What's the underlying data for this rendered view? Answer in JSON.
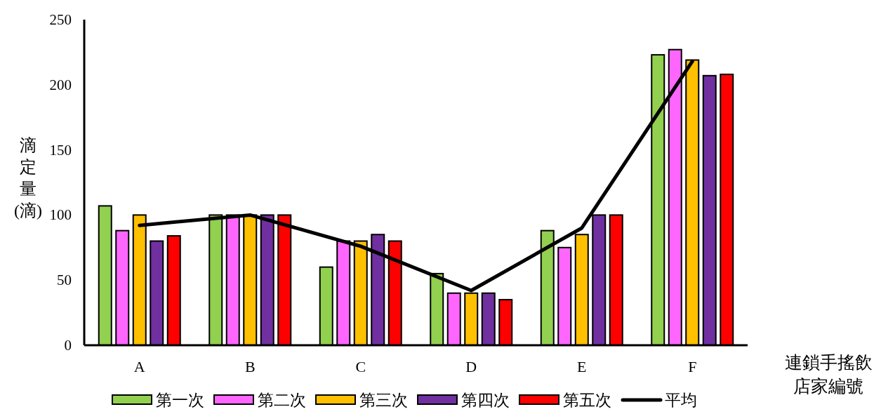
{
  "chart_data": {
    "type": "bar",
    "xlabel": "連鎖手搖飲店家編號",
    "ylabel": "滴定量(滴)",
    "categories": [
      "A",
      "B",
      "C",
      "D",
      "E",
      "F"
    ],
    "ylim": [
      0,
      250
    ],
    "yticks": [
      0,
      50,
      100,
      150,
      200,
      250
    ],
    "legend": "bottom",
    "series": [
      {
        "name": "第一次",
        "color": "#92d050",
        "values": [
          107,
          100,
          60,
          55,
          88,
          223
        ]
      },
      {
        "name": "第二次",
        "color": "#ff66ff",
        "values": [
          88,
          100,
          80,
          40,
          75,
          227
        ]
      },
      {
        "name": "第三次",
        "color": "#ffc000",
        "values": [
          100,
          100,
          80,
          40,
          85,
          219
        ]
      },
      {
        "name": "第四次",
        "color": "#7030a0",
        "values": [
          80,
          100,
          85,
          40,
          100,
          207
        ]
      },
      {
        "name": "第五次",
        "color": "#ff0000",
        "values": [
          84,
          100,
          80,
          35,
          100,
          208
        ]
      },
      {
        "name": "平均",
        "color": "#000000",
        "type": "line",
        "values": [
          92,
          100,
          76,
          42,
          90,
          218
        ]
      }
    ]
  }
}
